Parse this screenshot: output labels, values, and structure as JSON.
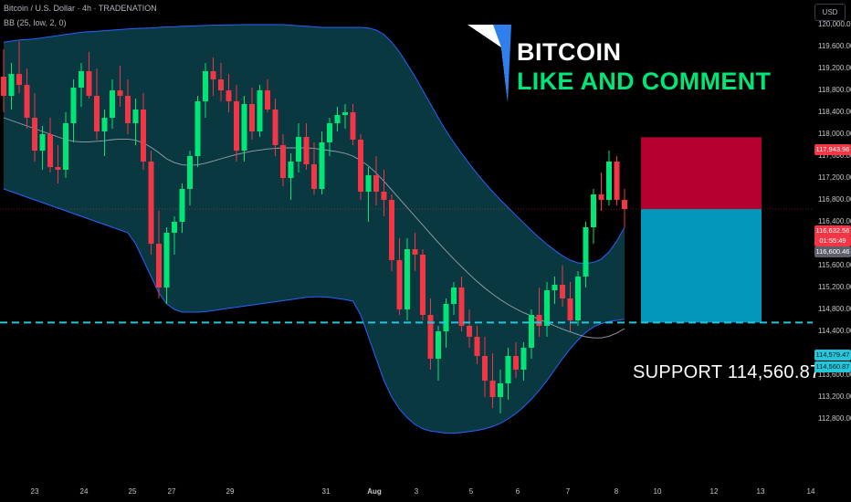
{
  "header": {
    "symbol_line": "Bitcoin / U.S. Dollar · 4h · TRADENATION",
    "indicator_line": "BB (25, low, 2, 0)"
  },
  "currency_button": "USD",
  "brand": {
    "title": "BITCOIN",
    "subtitle": "LIKE AND COMMENT"
  },
  "support_text": "SUPPORT  114,560.87",
  "colors": {
    "up": "#089981",
    "up_bright": "#00e676",
    "down": "#f23645",
    "band_fill": "#0a3b43",
    "band_line": "#2962ff",
    "basis": "#9aa1ad",
    "support_line": "#26c6da",
    "target_box": "#b5002f",
    "risk_box": "#0097b8"
  },
  "price_labels": {
    "target": "117,943.96",
    "current": "116,632.56",
    "countdown": "01:55:49",
    "sma": "116,600.46",
    "support_a": "114,579.47",
    "support_b": "114,560.87"
  },
  "chart_data": {
    "type": "candlestick",
    "ylim": [
      112600,
      120000
    ],
    "y_ticks": [
      120000,
      119600,
      119200,
      118800,
      118400,
      118000,
      117600,
      117200,
      116800,
      116400,
      116000,
      115600,
      115200,
      114800,
      114400,
      114000,
      113600,
      113200,
      112800
    ],
    "y_tick_labels": [
      "120,000.00",
      "119,600.00",
      "119,200.00",
      "118,800.00",
      "118,400.00",
      "118,000.00",
      "117,600.00",
      "117,200.00",
      "116,800.00",
      "116,400.00",
      "116,000.00",
      "115,600.00",
      "115,200.00",
      "114,800.00",
      "114,400.00",
      "114,000.00",
      "113,600.00",
      "113,200.00",
      "112,800.00"
    ],
    "x_tick_labels": [
      "23",
      "24",
      "25",
      "27",
      "29",
      "31",
      "Aug",
      "3",
      "5",
      "6",
      "7",
      "8",
      "10",
      "12",
      "13",
      "14"
    ],
    "support_level": 114560.87,
    "target_level": 117943.96,
    "entry_level": 116632.56,
    "candles": [
      [
        119050,
        119550,
        118400,
        118700
      ],
      [
        118700,
        119300,
        118450,
        119100
      ],
      [
        119100,
        119700,
        118750,
        118900
      ],
      [
        118900,
        119200,
        118100,
        118300
      ],
      [
        118300,
        118750,
        117500,
        117700
      ],
      [
        117700,
        118150,
        117350,
        118000
      ],
      [
        118000,
        118300,
        117300,
        117400
      ],
      [
        117400,
        117800,
        117100,
        117350
      ],
      [
        117350,
        118400,
        117200,
        118200
      ],
      [
        118200,
        119000,
        117850,
        118850
      ],
      [
        118850,
        119300,
        118500,
        119150
      ],
      [
        119150,
        119500,
        118650,
        118700
      ],
      [
        118700,
        119200,
        117900,
        118050
      ],
      [
        118050,
        118450,
        117600,
        118300
      ],
      [
        118300,
        119000,
        118100,
        118800
      ],
      [
        118800,
        119250,
        118500,
        118700
      ],
      [
        118700,
        119000,
        118000,
        118200
      ],
      [
        118200,
        118650,
        117800,
        118450
      ],
      [
        118450,
        118750,
        117350,
        117500
      ],
      [
        117500,
        117700,
        115800,
        116000
      ],
      [
        116000,
        116600,
        115000,
        115200
      ],
      [
        115200,
        116300,
        114900,
        116200
      ],
      [
        116200,
        116500,
        115800,
        116400
      ],
      [
        116400,
        117100,
        116200,
        117000
      ],
      [
        117000,
        117700,
        116700,
        117600
      ],
      [
        117600,
        118700,
        117400,
        118600
      ],
      [
        118600,
        119300,
        118300,
        119150
      ],
      [
        119150,
        119400,
        118700,
        119000
      ],
      [
        119000,
        119300,
        118600,
        118800
      ],
      [
        118800,
        119100,
        118400,
        118600
      ],
      [
        118600,
        118900,
        117500,
        117700
      ],
      [
        117700,
        118700,
        117500,
        118550
      ],
      [
        118550,
        118850,
        117900,
        118050
      ],
      [
        118050,
        118900,
        117950,
        118800
      ],
      [
        118800,
        119000,
        118400,
        118450
      ],
      [
        118450,
        118650,
        117600,
        117800
      ],
      [
        117800,
        118000,
        117050,
        117200
      ],
      [
        117200,
        117650,
        116800,
        117500
      ],
      [
        117500,
        118200,
        117300,
        117950
      ],
      [
        117950,
        118200,
        117350,
        117450
      ],
      [
        117450,
        117850,
        116900,
        117000
      ],
      [
        117000,
        118050,
        116900,
        117850
      ],
      [
        117850,
        118300,
        117600,
        118200
      ],
      [
        118200,
        118500,
        118050,
        118350
      ],
      [
        118350,
        118550,
        118100,
        118400
      ],
      [
        118400,
        118550,
        117800,
        117900
      ],
      [
        117900,
        118000,
        116800,
        116950
      ],
      [
        116950,
        117400,
        116400,
        117250
      ],
      [
        117250,
        117600,
        116700,
        116950
      ],
      [
        116950,
        117350,
        116500,
        116800
      ],
      [
        116800,
        116900,
        115500,
        115700
      ],
      [
        115700,
        116100,
        114700,
        114800
      ],
      [
        114800,
        116100,
        114600,
        115900
      ],
      [
        115900,
        116200,
        115500,
        115800
      ],
      [
        115800,
        115900,
        114600,
        114700
      ],
      [
        114700,
        115000,
        113700,
        113900
      ],
      [
        113900,
        114500,
        113500,
        114400
      ],
      [
        114400,
        115000,
        114100,
        114900
      ],
      [
        114900,
        115300,
        114700,
        115200
      ],
      [
        115200,
        115400,
        114400,
        114500
      ],
      [
        114500,
        114800,
        114100,
        114300
      ],
      [
        114300,
        114500,
        113800,
        113950
      ],
      [
        113950,
        114300,
        113200,
        113500
      ],
      [
        113500,
        114000,
        113000,
        113200
      ],
      [
        113200,
        113700,
        112900,
        113450
      ],
      [
        113450,
        114100,
        113150,
        113950
      ],
      [
        113950,
        114200,
        113550,
        113700
      ],
      [
        113700,
        114200,
        113500,
        114100
      ],
      [
        114100,
        114800,
        113900,
        114700
      ],
      [
        114700,
        115200,
        114300,
        114500
      ],
      [
        114500,
        115300,
        114300,
        115150
      ],
      [
        115150,
        115400,
        114900,
        115250
      ],
      [
        115250,
        115600,
        114850,
        115000
      ],
      [
        115000,
        115300,
        114400,
        114600
      ],
      [
        114600,
        115500,
        114500,
        115400
      ],
      [
        115400,
        116400,
        115200,
        116300
      ],
      [
        116300,
        117000,
        116000,
        116900
      ],
      [
        116900,
        117300,
        116600,
        116800
      ],
      [
        116800,
        117700,
        116700,
        117500
      ],
      [
        117500,
        117600,
        116700,
        116800
      ],
      [
        116800,
        117000,
        116300,
        116632
      ]
    ],
    "bb_upper": [
      119680,
      119700,
      119720,
      119730,
      119740,
      119760,
      119780,
      119800,
      119820,
      119840,
      119860,
      119870,
      119880,
      119890,
      119900,
      119910,
      119920,
      119930,
      119935,
      119940,
      119950,
      119960,
      119960,
      119970,
      119975,
      119980,
      119985,
      119990,
      119992,
      119995,
      119998,
      120000,
      120000,
      120000,
      120000,
      120000,
      120000,
      119990,
      119980,
      119970,
      119960,
      119950,
      119950,
      119950,
      119950,
      119950,
      119950,
      119940,
      119900,
      119820,
      119680,
      119500,
      119280,
      119050,
      118800,
      118550,
      118300,
      118060,
      117850,
      117650,
      117460,
      117280,
      117110,
      116950,
      116800,
      116660,
      116520,
      116380,
      116240,
      116110,
      115990,
      115880,
      115780,
      115700,
      115650,
      115640,
      115660,
      115720,
      115850,
      116050,
      116300
    ],
    "bb_basis": [
      118300,
      118250,
      118200,
      118150,
      118100,
      118050,
      118000,
      117950,
      117900,
      117870,
      117860,
      117860,
      117870,
      117880,
      117900,
      117910,
      117910,
      117890,
      117840,
      117760,
      117660,
      117550,
      117480,
      117440,
      117430,
      117440,
      117470,
      117510,
      117550,
      117590,
      117630,
      117660,
      117690,
      117710,
      117730,
      117740,
      117750,
      117750,
      117750,
      117750,
      117740,
      117720,
      117700,
      117680,
      117650,
      117600,
      117520,
      117420,
      117290,
      117140,
      116980,
      116820,
      116660,
      116500,
      116340,
      116180,
      116020,
      115870,
      115720,
      115580,
      115440,
      115310,
      115190,
      115080,
      114980,
      114890,
      114810,
      114740,
      114680,
      114620,
      114560,
      114500,
      114440,
      114390,
      114340,
      114300,
      114280,
      114280,
      114310,
      114370,
      114450
    ],
    "bb_lower": [
      117000,
      116950,
      116900,
      116850,
      116800,
      116750,
      116700,
      116650,
      116600,
      116550,
      116500,
      116450,
      116400,
      116350,
      116300,
      116250,
      116200,
      116000,
      115700,
      115400,
      115100,
      114900,
      114800,
      114750,
      114750,
      114750,
      114760,
      114780,
      114800,
      114820,
      114840,
      114860,
      114880,
      114900,
      114920,
      114940,
      114960,
      114980,
      115000,
      115020,
      115030,
      115030,
      115020,
      115000,
      114980,
      114950,
      114700,
      114300,
      113900,
      113500,
      113200,
      112980,
      112820,
      112700,
      112620,
      112580,
      112560,
      112540,
      112540,
      112550,
      112570,
      112590,
      112620,
      112660,
      112720,
      112800,
      112900,
      113020,
      113160,
      113320,
      113500,
      113700,
      113900,
      114080,
      114240,
      114380,
      114480,
      114540,
      114580,
      114600,
      114620
    ]
  }
}
